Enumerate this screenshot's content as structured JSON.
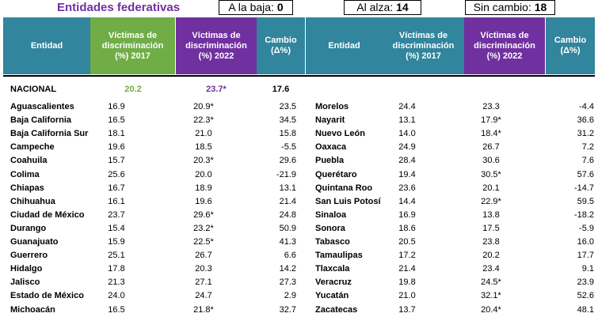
{
  "header": {
    "title": "Entidades federativas",
    "baja_label": "A la baja:",
    "baja_value": "0",
    "alza_label": "Al alza:",
    "alza_value": "14",
    "sin_label": "Sin cambio:",
    "sin_value": "18"
  },
  "columns": {
    "entidad": "Entidad",
    "v2017": "Víctimas de discriminación (%) 2017",
    "v2022": "Víctimas de discriminación (%) 2022",
    "cambio": "Cambio (Δ%)"
  },
  "nacional": {
    "name": "NACIONAL",
    "v2017": "20.2",
    "v2022": "23.7*",
    "cambio": "17.6"
  },
  "left_rows": [
    {
      "name": "Aguascalientes",
      "v2017": "16.9",
      "v2022": "20.9*",
      "cambio": "23.5"
    },
    {
      "name": "Baja California",
      "v2017": "16.5",
      "v2022": "22.3*",
      "cambio": "34.5"
    },
    {
      "name": "Baja California Sur",
      "v2017": "18.1",
      "v2022": "21.0",
      "cambio": "15.8"
    },
    {
      "name": "Campeche",
      "v2017": "19.6",
      "v2022": "18.5",
      "cambio": "-5.5"
    },
    {
      "name": "Coahuila",
      "v2017": "15.7",
      "v2022": "20.3*",
      "cambio": "29.6"
    },
    {
      "name": "Colima",
      "v2017": "25.6",
      "v2022": "20.0",
      "cambio": "-21.9"
    },
    {
      "name": "Chiapas",
      "v2017": "16.7",
      "v2022": "18.9",
      "cambio": "13.1"
    },
    {
      "name": "Chihuahua",
      "v2017": "16.1",
      "v2022": "19.6",
      "cambio": "21.4"
    },
    {
      "name": "Ciudad de México",
      "v2017": "23.7",
      "v2022": "29.6*",
      "cambio": "24.8"
    },
    {
      "name": "Durango",
      "v2017": "15.4",
      "v2022": "23.2*",
      "cambio": "50.9"
    },
    {
      "name": "Guanajuato",
      "v2017": "15.9",
      "v2022": "22.5*",
      "cambio": "41.3"
    },
    {
      "name": "Guerrero",
      "v2017": "25.1",
      "v2022": "26.7",
      "cambio": "6.6"
    },
    {
      "name": "Hidalgo",
      "v2017": "17.8",
      "v2022": "20.3",
      "cambio": "14.2"
    },
    {
      "name": "Jalisco",
      "v2017": "21.3",
      "v2022": "27.1",
      "cambio": "27.3"
    },
    {
      "name": "Estado de México",
      "v2017": "24.0",
      "v2022": "24.7",
      "cambio": "2.9"
    },
    {
      "name": "Michoacán",
      "v2017": "16.5",
      "v2022": "21.8*",
      "cambio": "32.7"
    }
  ],
  "right_rows": [
    {
      "name": "Morelos",
      "v2017": "24.4",
      "v2022": "23.3",
      "cambio": "-4.4"
    },
    {
      "name": "Nayarit",
      "v2017": "13.1",
      "v2022": "17.9*",
      "cambio": "36.6"
    },
    {
      "name": "Nuevo León",
      "v2017": "14.0",
      "v2022": "18.4*",
      "cambio": "31.2"
    },
    {
      "name": "Oaxaca",
      "v2017": "24.9",
      "v2022": "26.7",
      "cambio": "7.2"
    },
    {
      "name": "Puebla",
      "v2017": "28.4",
      "v2022": "30.6",
      "cambio": "7.6"
    },
    {
      "name": "Querétaro",
      "v2017": "19.4",
      "v2022": "30.5*",
      "cambio": "57.6"
    },
    {
      "name": "Quintana Roo",
      "v2017": "23.6",
      "v2022": "20.1",
      "cambio": "-14.7"
    },
    {
      "name": "San Luis Potosí",
      "v2017": "14.4",
      "v2022": "22.9*",
      "cambio": "59.5"
    },
    {
      "name": "Sinaloa",
      "v2017": "16.9",
      "v2022": "13.8",
      "cambio": "-18.2"
    },
    {
      "name": "Sonora",
      "v2017": "18.6",
      "v2022": "17.5",
      "cambio": "-5.9"
    },
    {
      "name": "Tabasco",
      "v2017": "20.5",
      "v2022": "23.8",
      "cambio": "16.0"
    },
    {
      "name": "Tamaulipas",
      "v2017": "17.2",
      "v2022": "20.2",
      "cambio": "17.7"
    },
    {
      "name": "Tlaxcala",
      "v2017": "21.4",
      "v2022": "23.4",
      "cambio": "9.1"
    },
    {
      "name": "Veracruz",
      "v2017": "19.8",
      "v2022": "24.5*",
      "cambio": "23.9"
    },
    {
      "name": "Yucatán",
      "v2017": "21.0",
      "v2022": "32.1*",
      "cambio": "52.6"
    },
    {
      "name": "Zacatecas",
      "v2017": "13.7",
      "v2022": "20.4*",
      "cambio": "48.1"
    }
  ]
}
